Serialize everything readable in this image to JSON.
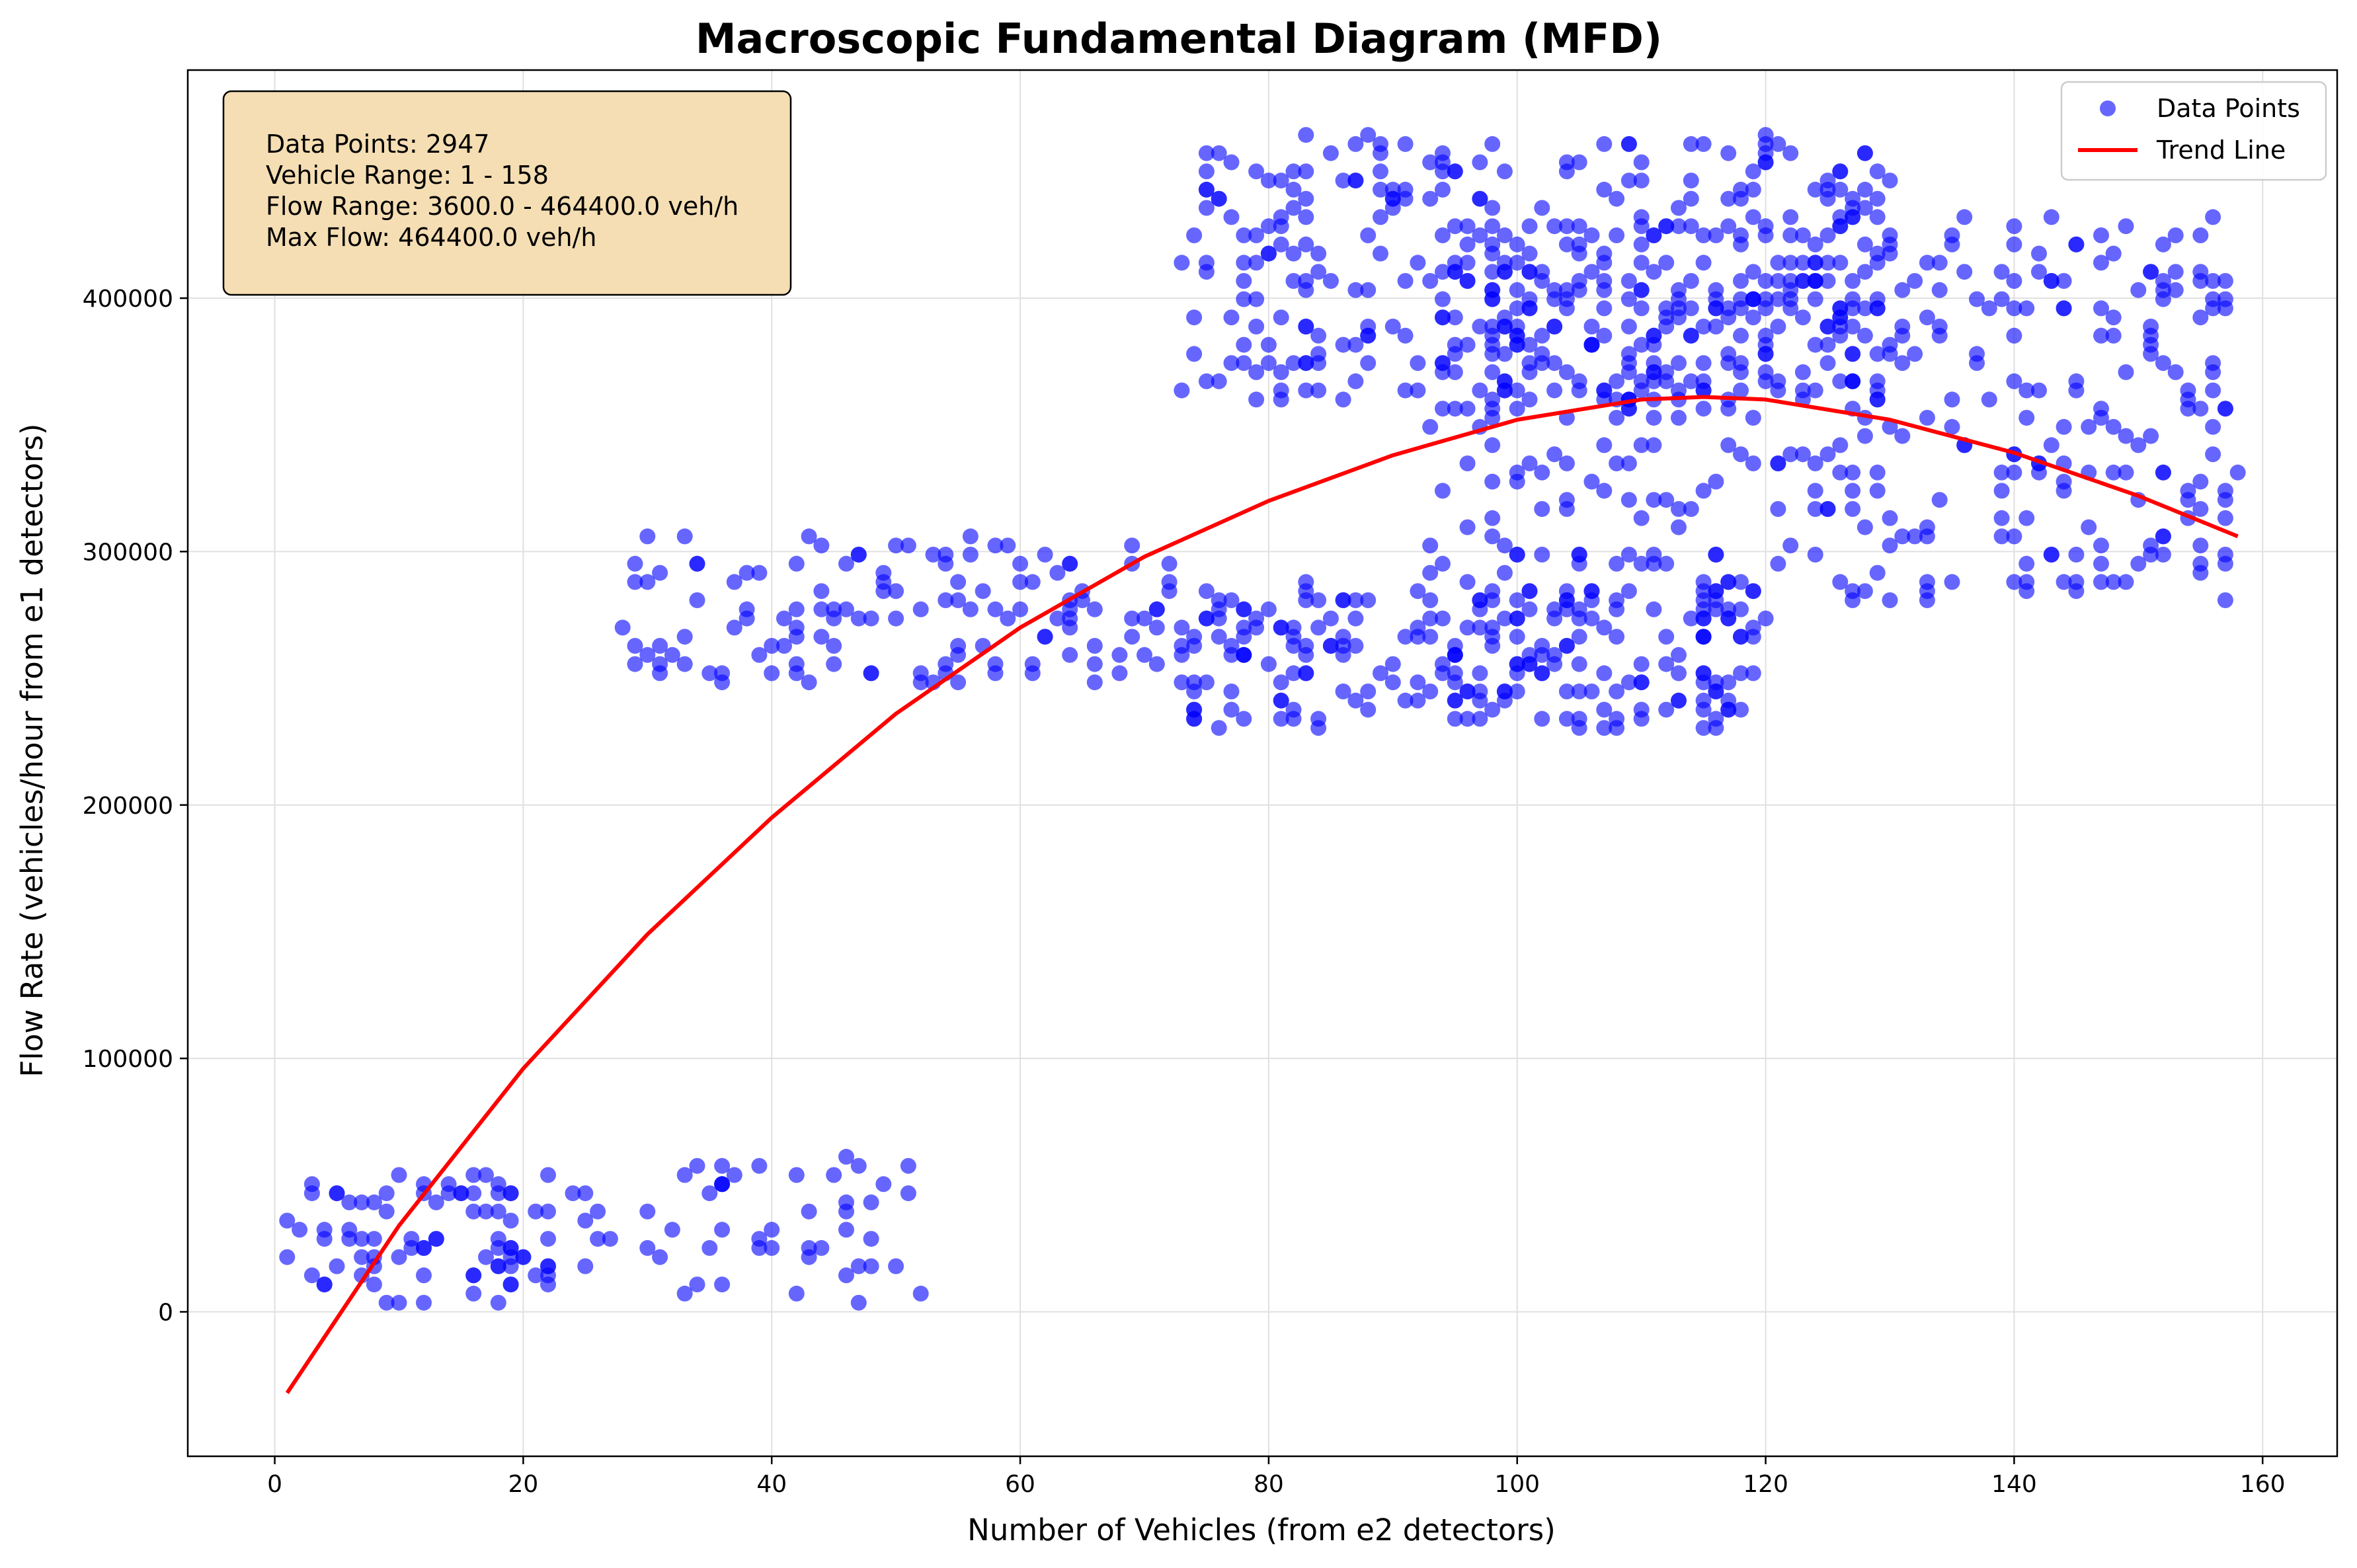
{
  "chart_data": {
    "type": "scatter",
    "title": "Macroscopic Fundamental Diagram (MFD)",
    "xlabel": "Number of Vehicles (from e2 detectors)",
    "ylabel": "Flow Rate (vehicles/hour from e1 detectors)",
    "xlim": [
      -7,
      166
    ],
    "ylim": [
      -57000,
      490000
    ],
    "x_ticks": [
      0,
      20,
      40,
      60,
      80,
      100,
      120,
      140,
      160
    ],
    "y_ticks": [
      0,
      100000,
      200000,
      300000,
      400000
    ],
    "grid": true,
    "legend_position": "top-right",
    "colors": {
      "points": "#0000ff",
      "trend": "#ff0000",
      "info_box_fill": "#f5deb3"
    },
    "info_box": {
      "lines": [
        "Data Points: 2947",
        "Vehicle Range: 1 - 158",
        "Flow Range: 3600.0 - 464400.0 veh/h",
        "Max Flow: 464400.0 veh/h"
      ]
    },
    "series": [
      {
        "name": "Data Points",
        "type": "scatter",
        "x_range": [
          1,
          158
        ],
        "note_clusters": [
          {
            "x": [
              1,
              27
            ],
            "y": [
              3600,
              54000
            ]
          },
          {
            "x": [
              29,
              53
            ],
            "y": [
              3600,
              61200
            ]
          },
          {
            "x": [
              28,
              73
            ],
            "y": [
              248400,
              306000
            ]
          },
          {
            "x": [
              73,
              120
            ],
            "y": [
              230400,
              288000
            ]
          },
          {
            "x": [
              73,
              130
            ],
            "y": [
              360000,
              464400
            ]
          },
          {
            "x": [
              93,
              158
            ],
            "y": [
              280800,
              432000
            ]
          }
        ]
      },
      {
        "name": "Trend Line",
        "type": "line",
        "x": [
          1,
          10,
          20,
          30,
          40,
          50,
          60,
          70,
          80,
          90,
          100,
          110,
          115,
          120,
          130,
          140,
          150,
          158
        ],
        "y": [
          -32000,
          34000,
          96000,
          149000,
          195000,
          236000,
          270000,
          298000,
          320000,
          338000,
          352000,
          360000,
          361000,
          360000,
          352000,
          339000,
          322000,
          306000
        ]
      }
    ]
  }
}
